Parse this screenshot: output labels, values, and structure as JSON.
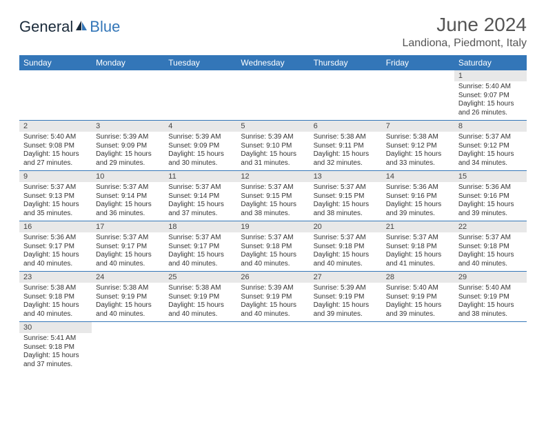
{
  "logo": {
    "general": "General",
    "blue": "Blue"
  },
  "header": {
    "month_title": "June 2024",
    "location": "Landiona, Piedmont, Italy"
  },
  "colors": {
    "header_bg": "#3376b8",
    "header_text": "#ffffff",
    "daynum_bg": "#e8e8e8",
    "cell_border": "#3376b8",
    "body_text": "#333333",
    "title_text": "#555555",
    "logo_dark": "#1a2a3a",
    "logo_blue": "#3376b8",
    "page_bg": "#ffffff"
  },
  "typography": {
    "month_title_fontsize": 28,
    "location_fontsize": 16,
    "dayheader_fontsize": 12,
    "daynum_fontsize": 11,
    "cell_fontsize": 10
  },
  "day_headers": [
    "Sunday",
    "Monday",
    "Tuesday",
    "Wednesday",
    "Thursday",
    "Friday",
    "Saturday"
  ],
  "weeks": [
    [
      null,
      null,
      null,
      null,
      null,
      null,
      {
        "n": "1",
        "sr": "Sunrise: 5:40 AM",
        "ss": "Sunset: 9:07 PM",
        "d1": "Daylight: 15 hours",
        "d2": "and 26 minutes."
      }
    ],
    [
      {
        "n": "2",
        "sr": "Sunrise: 5:40 AM",
        "ss": "Sunset: 9:08 PM",
        "d1": "Daylight: 15 hours",
        "d2": "and 27 minutes."
      },
      {
        "n": "3",
        "sr": "Sunrise: 5:39 AM",
        "ss": "Sunset: 9:09 PM",
        "d1": "Daylight: 15 hours",
        "d2": "and 29 minutes."
      },
      {
        "n": "4",
        "sr": "Sunrise: 5:39 AM",
        "ss": "Sunset: 9:09 PM",
        "d1": "Daylight: 15 hours",
        "d2": "and 30 minutes."
      },
      {
        "n": "5",
        "sr": "Sunrise: 5:39 AM",
        "ss": "Sunset: 9:10 PM",
        "d1": "Daylight: 15 hours",
        "d2": "and 31 minutes."
      },
      {
        "n": "6",
        "sr": "Sunrise: 5:38 AM",
        "ss": "Sunset: 9:11 PM",
        "d1": "Daylight: 15 hours",
        "d2": "and 32 minutes."
      },
      {
        "n": "7",
        "sr": "Sunrise: 5:38 AM",
        "ss": "Sunset: 9:12 PM",
        "d1": "Daylight: 15 hours",
        "d2": "and 33 minutes."
      },
      {
        "n": "8",
        "sr": "Sunrise: 5:37 AM",
        "ss": "Sunset: 9:12 PM",
        "d1": "Daylight: 15 hours",
        "d2": "and 34 minutes."
      }
    ],
    [
      {
        "n": "9",
        "sr": "Sunrise: 5:37 AM",
        "ss": "Sunset: 9:13 PM",
        "d1": "Daylight: 15 hours",
        "d2": "and 35 minutes."
      },
      {
        "n": "10",
        "sr": "Sunrise: 5:37 AM",
        "ss": "Sunset: 9:14 PM",
        "d1": "Daylight: 15 hours",
        "d2": "and 36 minutes."
      },
      {
        "n": "11",
        "sr": "Sunrise: 5:37 AM",
        "ss": "Sunset: 9:14 PM",
        "d1": "Daylight: 15 hours",
        "d2": "and 37 minutes."
      },
      {
        "n": "12",
        "sr": "Sunrise: 5:37 AM",
        "ss": "Sunset: 9:15 PM",
        "d1": "Daylight: 15 hours",
        "d2": "and 38 minutes."
      },
      {
        "n": "13",
        "sr": "Sunrise: 5:37 AM",
        "ss": "Sunset: 9:15 PM",
        "d1": "Daylight: 15 hours",
        "d2": "and 38 minutes."
      },
      {
        "n": "14",
        "sr": "Sunrise: 5:36 AM",
        "ss": "Sunset: 9:16 PM",
        "d1": "Daylight: 15 hours",
        "d2": "and 39 minutes."
      },
      {
        "n": "15",
        "sr": "Sunrise: 5:36 AM",
        "ss": "Sunset: 9:16 PM",
        "d1": "Daylight: 15 hours",
        "d2": "and 39 minutes."
      }
    ],
    [
      {
        "n": "16",
        "sr": "Sunrise: 5:36 AM",
        "ss": "Sunset: 9:17 PM",
        "d1": "Daylight: 15 hours",
        "d2": "and 40 minutes."
      },
      {
        "n": "17",
        "sr": "Sunrise: 5:37 AM",
        "ss": "Sunset: 9:17 PM",
        "d1": "Daylight: 15 hours",
        "d2": "and 40 minutes."
      },
      {
        "n": "18",
        "sr": "Sunrise: 5:37 AM",
        "ss": "Sunset: 9:17 PM",
        "d1": "Daylight: 15 hours",
        "d2": "and 40 minutes."
      },
      {
        "n": "19",
        "sr": "Sunrise: 5:37 AM",
        "ss": "Sunset: 9:18 PM",
        "d1": "Daylight: 15 hours",
        "d2": "and 40 minutes."
      },
      {
        "n": "20",
        "sr": "Sunrise: 5:37 AM",
        "ss": "Sunset: 9:18 PM",
        "d1": "Daylight: 15 hours",
        "d2": "and 40 minutes."
      },
      {
        "n": "21",
        "sr": "Sunrise: 5:37 AM",
        "ss": "Sunset: 9:18 PM",
        "d1": "Daylight: 15 hours",
        "d2": "and 41 minutes."
      },
      {
        "n": "22",
        "sr": "Sunrise: 5:37 AM",
        "ss": "Sunset: 9:18 PM",
        "d1": "Daylight: 15 hours",
        "d2": "and 40 minutes."
      }
    ],
    [
      {
        "n": "23",
        "sr": "Sunrise: 5:38 AM",
        "ss": "Sunset: 9:18 PM",
        "d1": "Daylight: 15 hours",
        "d2": "and 40 minutes."
      },
      {
        "n": "24",
        "sr": "Sunrise: 5:38 AM",
        "ss": "Sunset: 9:19 PM",
        "d1": "Daylight: 15 hours",
        "d2": "and 40 minutes."
      },
      {
        "n": "25",
        "sr": "Sunrise: 5:38 AM",
        "ss": "Sunset: 9:19 PM",
        "d1": "Daylight: 15 hours",
        "d2": "and 40 minutes."
      },
      {
        "n": "26",
        "sr": "Sunrise: 5:39 AM",
        "ss": "Sunset: 9:19 PM",
        "d1": "Daylight: 15 hours",
        "d2": "and 40 minutes."
      },
      {
        "n": "27",
        "sr": "Sunrise: 5:39 AM",
        "ss": "Sunset: 9:19 PM",
        "d1": "Daylight: 15 hours",
        "d2": "and 39 minutes."
      },
      {
        "n": "28",
        "sr": "Sunrise: 5:40 AM",
        "ss": "Sunset: 9:19 PM",
        "d1": "Daylight: 15 hours",
        "d2": "and 39 minutes."
      },
      {
        "n": "29",
        "sr": "Sunrise: 5:40 AM",
        "ss": "Sunset: 9:19 PM",
        "d1": "Daylight: 15 hours",
        "d2": "and 38 minutes."
      }
    ],
    [
      {
        "n": "30",
        "sr": "Sunrise: 5:41 AM",
        "ss": "Sunset: 9:18 PM",
        "d1": "Daylight: 15 hours",
        "d2": "and 37 minutes."
      },
      null,
      null,
      null,
      null,
      null,
      null
    ]
  ]
}
